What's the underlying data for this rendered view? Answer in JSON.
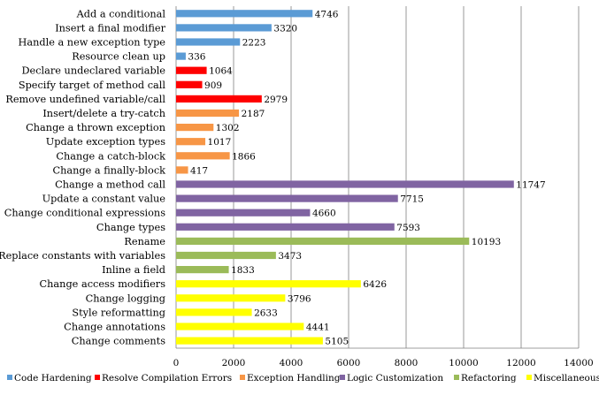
{
  "chart_data": {
    "type": "bar",
    "orientation": "horizontal",
    "title": "",
    "xlabel": "",
    "ylabel": "",
    "xlim": [
      0,
      14000
    ],
    "xticks": [
      0,
      2000,
      4000,
      6000,
      8000,
      10000,
      12000,
      14000
    ],
    "grid": "vertical",
    "legend_position": "bottom",
    "legend": [
      {
        "name": "Code Hardening",
        "color": "#5b9bd5"
      },
      {
        "name": "Resolve Compilation Errors",
        "color": "#ff0000"
      },
      {
        "name": "Exception Handling",
        "color": "#f79646"
      },
      {
        "name": "Logic Customization",
        "color": "#8064a2"
      },
      {
        "name": "Refactoring",
        "color": "#9bbb59"
      },
      {
        "name": "Miscellaneous",
        "color": "#ffff00"
      }
    ],
    "bars": [
      {
        "category": "Add a conditional",
        "value": 4746,
        "group": "Code Hardening"
      },
      {
        "category": "Insert a final modifier",
        "value": 3320,
        "group": "Code Hardening"
      },
      {
        "category": "Handle a new exception type",
        "value": 2223,
        "group": "Code Hardening"
      },
      {
        "category": "Resource clean up",
        "value": 336,
        "group": "Code Hardening"
      },
      {
        "category": "Declare undeclared variable",
        "value": 1064,
        "group": "Resolve Compilation Errors"
      },
      {
        "category": "Specify target of method call",
        "value": 909,
        "group": "Resolve Compilation Errors"
      },
      {
        "category": "Remove undefined variable/call",
        "value": 2979,
        "group": "Resolve Compilation Errors"
      },
      {
        "category": "Insert/delete a try-catch",
        "value": 2187,
        "group": "Exception Handling"
      },
      {
        "category": "Change a thrown exception",
        "value": 1302,
        "group": "Exception Handling"
      },
      {
        "category": "Update exception types",
        "value": 1017,
        "group": "Exception Handling"
      },
      {
        "category": "Change a catch-block",
        "value": 1866,
        "group": "Exception Handling"
      },
      {
        "category": "Change a finally-block",
        "value": 417,
        "group": "Exception Handling"
      },
      {
        "category": "Change a method call",
        "value": 11747,
        "group": "Logic Customization"
      },
      {
        "category": "Update a constant value",
        "value": 7715,
        "group": "Logic Customization"
      },
      {
        "category": "Change conditional expressions",
        "value": 4660,
        "group": "Logic Customization"
      },
      {
        "category": "Change types",
        "value": 7593,
        "group": "Logic Customization"
      },
      {
        "category": "Rename",
        "value": 10193,
        "group": "Refactoring"
      },
      {
        "category": "Replace constants with variables",
        "value": 3473,
        "group": "Refactoring"
      },
      {
        "category": "Inline a field",
        "value": 1833,
        "group": "Refactoring"
      },
      {
        "category": "Change access modifiers",
        "value": 6426,
        "group": "Miscellaneous"
      },
      {
        "category": "Change logging",
        "value": 3796,
        "group": "Miscellaneous"
      },
      {
        "category": "Style reformatting",
        "value": 2633,
        "group": "Miscellaneous"
      },
      {
        "category": "Change annotations",
        "value": 4441,
        "group": "Miscellaneous"
      },
      {
        "category": "Change comments",
        "value": 5105,
        "group": "Miscellaneous"
      }
    ]
  }
}
